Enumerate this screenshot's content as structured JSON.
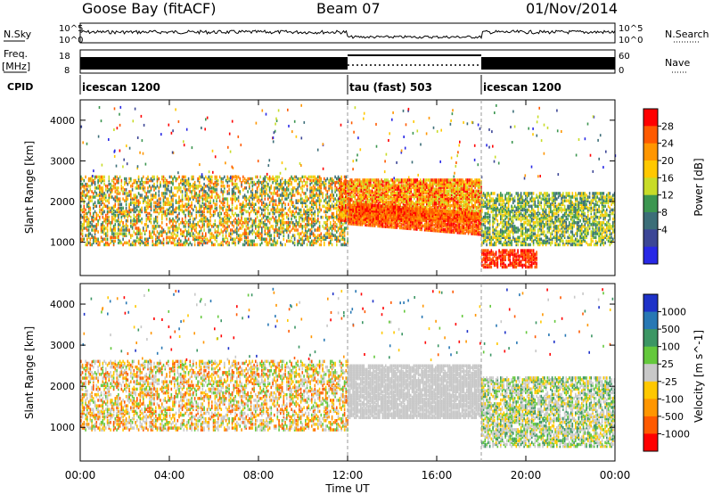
{
  "header": {
    "station": "Goose Bay (fitACF)",
    "beam": "Beam 07",
    "date": "01/Nov/2014"
  },
  "status_panels": {
    "nsky_label": "N.Sky",
    "nsky_ticks": [
      "10^5",
      "10^0"
    ],
    "nsearch_label": "N.Search",
    "nsearch_ticks": [
      "10^5",
      "10^0"
    ],
    "freq_label": "Freq.",
    "freq_unit": "[MHz]",
    "freq_ticks": [
      "18",
      "8"
    ],
    "nave_label": "Nave",
    "nave_ticks": [
      "60",
      "0"
    ],
    "cpid_label": "CPID",
    "modes": [
      {
        "name": "icescan 1200",
        "start_hr": 0,
        "end_hr": 12
      },
      {
        "name": "tau (fast) 503",
        "start_hr": 12,
        "end_hr": 18
      },
      {
        "name": "icescan 1200",
        "start_hr": 18,
        "end_hr": 24
      }
    ]
  },
  "power_colorbar": {
    "label": "Power [dB]",
    "ticks": [
      "28",
      "24",
      "20",
      "16",
      "12",
      "8",
      "4"
    ],
    "colors": [
      "#ff0000",
      "#ff5a00",
      "#ff9600",
      "#ffc800",
      "#c8dc28",
      "#3c9650",
      "#3c6e78",
      "#3c4696",
      "#2828e6"
    ]
  },
  "velocity_colorbar": {
    "label": "Velocity [m s^-1]",
    "ticks": [
      "1000",
      "500",
      "100",
      "25",
      "-25",
      "-100",
      "-500",
      "-1000"
    ],
    "colors": [
      "#1e32c8",
      "#2878b4",
      "#3c9664",
      "#64c83c",
      "#c8c8c8",
      "#ffc800",
      "#ff9600",
      "#ff5a00",
      "#ff0000"
    ]
  },
  "chart_data": [
    {
      "type": "heatmap",
      "name": "power",
      "ylabel": "Slant Range [km]",
      "yticks": [
        1000,
        2000,
        3000,
        4000
      ],
      "ylim": [
        180,
        4500
      ],
      "xlim_hours": [
        0,
        24
      ],
      "regions": [
        {
          "t0": 0.0,
          "t1": 12.0,
          "r0": 900,
          "r1": 2600,
          "density": 0.45,
          "levels": [
            1,
            2,
            3,
            4,
            5,
            6
          ],
          "note": "scattered weak echoes"
        },
        {
          "t0": 11.6,
          "t1": 18.0,
          "r0": 1500,
          "r1": 2500,
          "density": 0.85,
          "levels": [
            0,
            1,
            2,
            3,
            4
          ],
          "note": "strong echo band"
        },
        {
          "t0": 12.0,
          "t1": 18.0,
          "r0": 1150,
          "r1": 1650,
          "density": 0.9,
          "levels": [
            0,
            1,
            1,
            2
          ],
          "note": "descending strong band"
        },
        {
          "t0": 18.0,
          "t1": 24.0,
          "r0": 900,
          "r1": 2200,
          "density": 0.6,
          "levels": [
            3,
            4,
            5,
            6
          ],
          "note": "mixed echoes"
        },
        {
          "t0": 18.0,
          "t1": 20.5,
          "r0": 350,
          "r1": 800,
          "density": 0.7,
          "levels": [
            0,
            1
          ],
          "note": "near-range echoes"
        }
      ]
    },
    {
      "type": "heatmap",
      "name": "velocity",
      "ylabel": "Slant Range [km]",
      "yticks": [
        1000,
        2000,
        3000,
        4000
      ],
      "ylim": [
        180,
        4500
      ],
      "xlim_hours": [
        0,
        24
      ],
      "regions": [
        {
          "t0": 0.0,
          "t1": 12.0,
          "r0": 900,
          "r1": 2600,
          "density": 0.45,
          "levels": [
            4,
            4,
            5,
            6,
            7,
            3
          ],
          "note": "mostly near zero"
        },
        {
          "t0": 12.0,
          "t1": 18.0,
          "r0": 1200,
          "r1": 2500,
          "density": 0.85,
          "levels": [
            4,
            4,
            4,
            4
          ],
          "note": "ground scatter grey"
        },
        {
          "t0": 18.0,
          "t1": 24.0,
          "r0": 500,
          "r1": 2200,
          "density": 0.6,
          "levels": [
            4,
            4,
            3,
            2,
            5
          ],
          "note": "mixed"
        }
      ]
    }
  ],
  "xaxis": {
    "ticks": [
      "00:00",
      "04:00",
      "08:00",
      "12:00",
      "16:00",
      "20:00",
      "00:00"
    ],
    "label": "Time UT"
  }
}
